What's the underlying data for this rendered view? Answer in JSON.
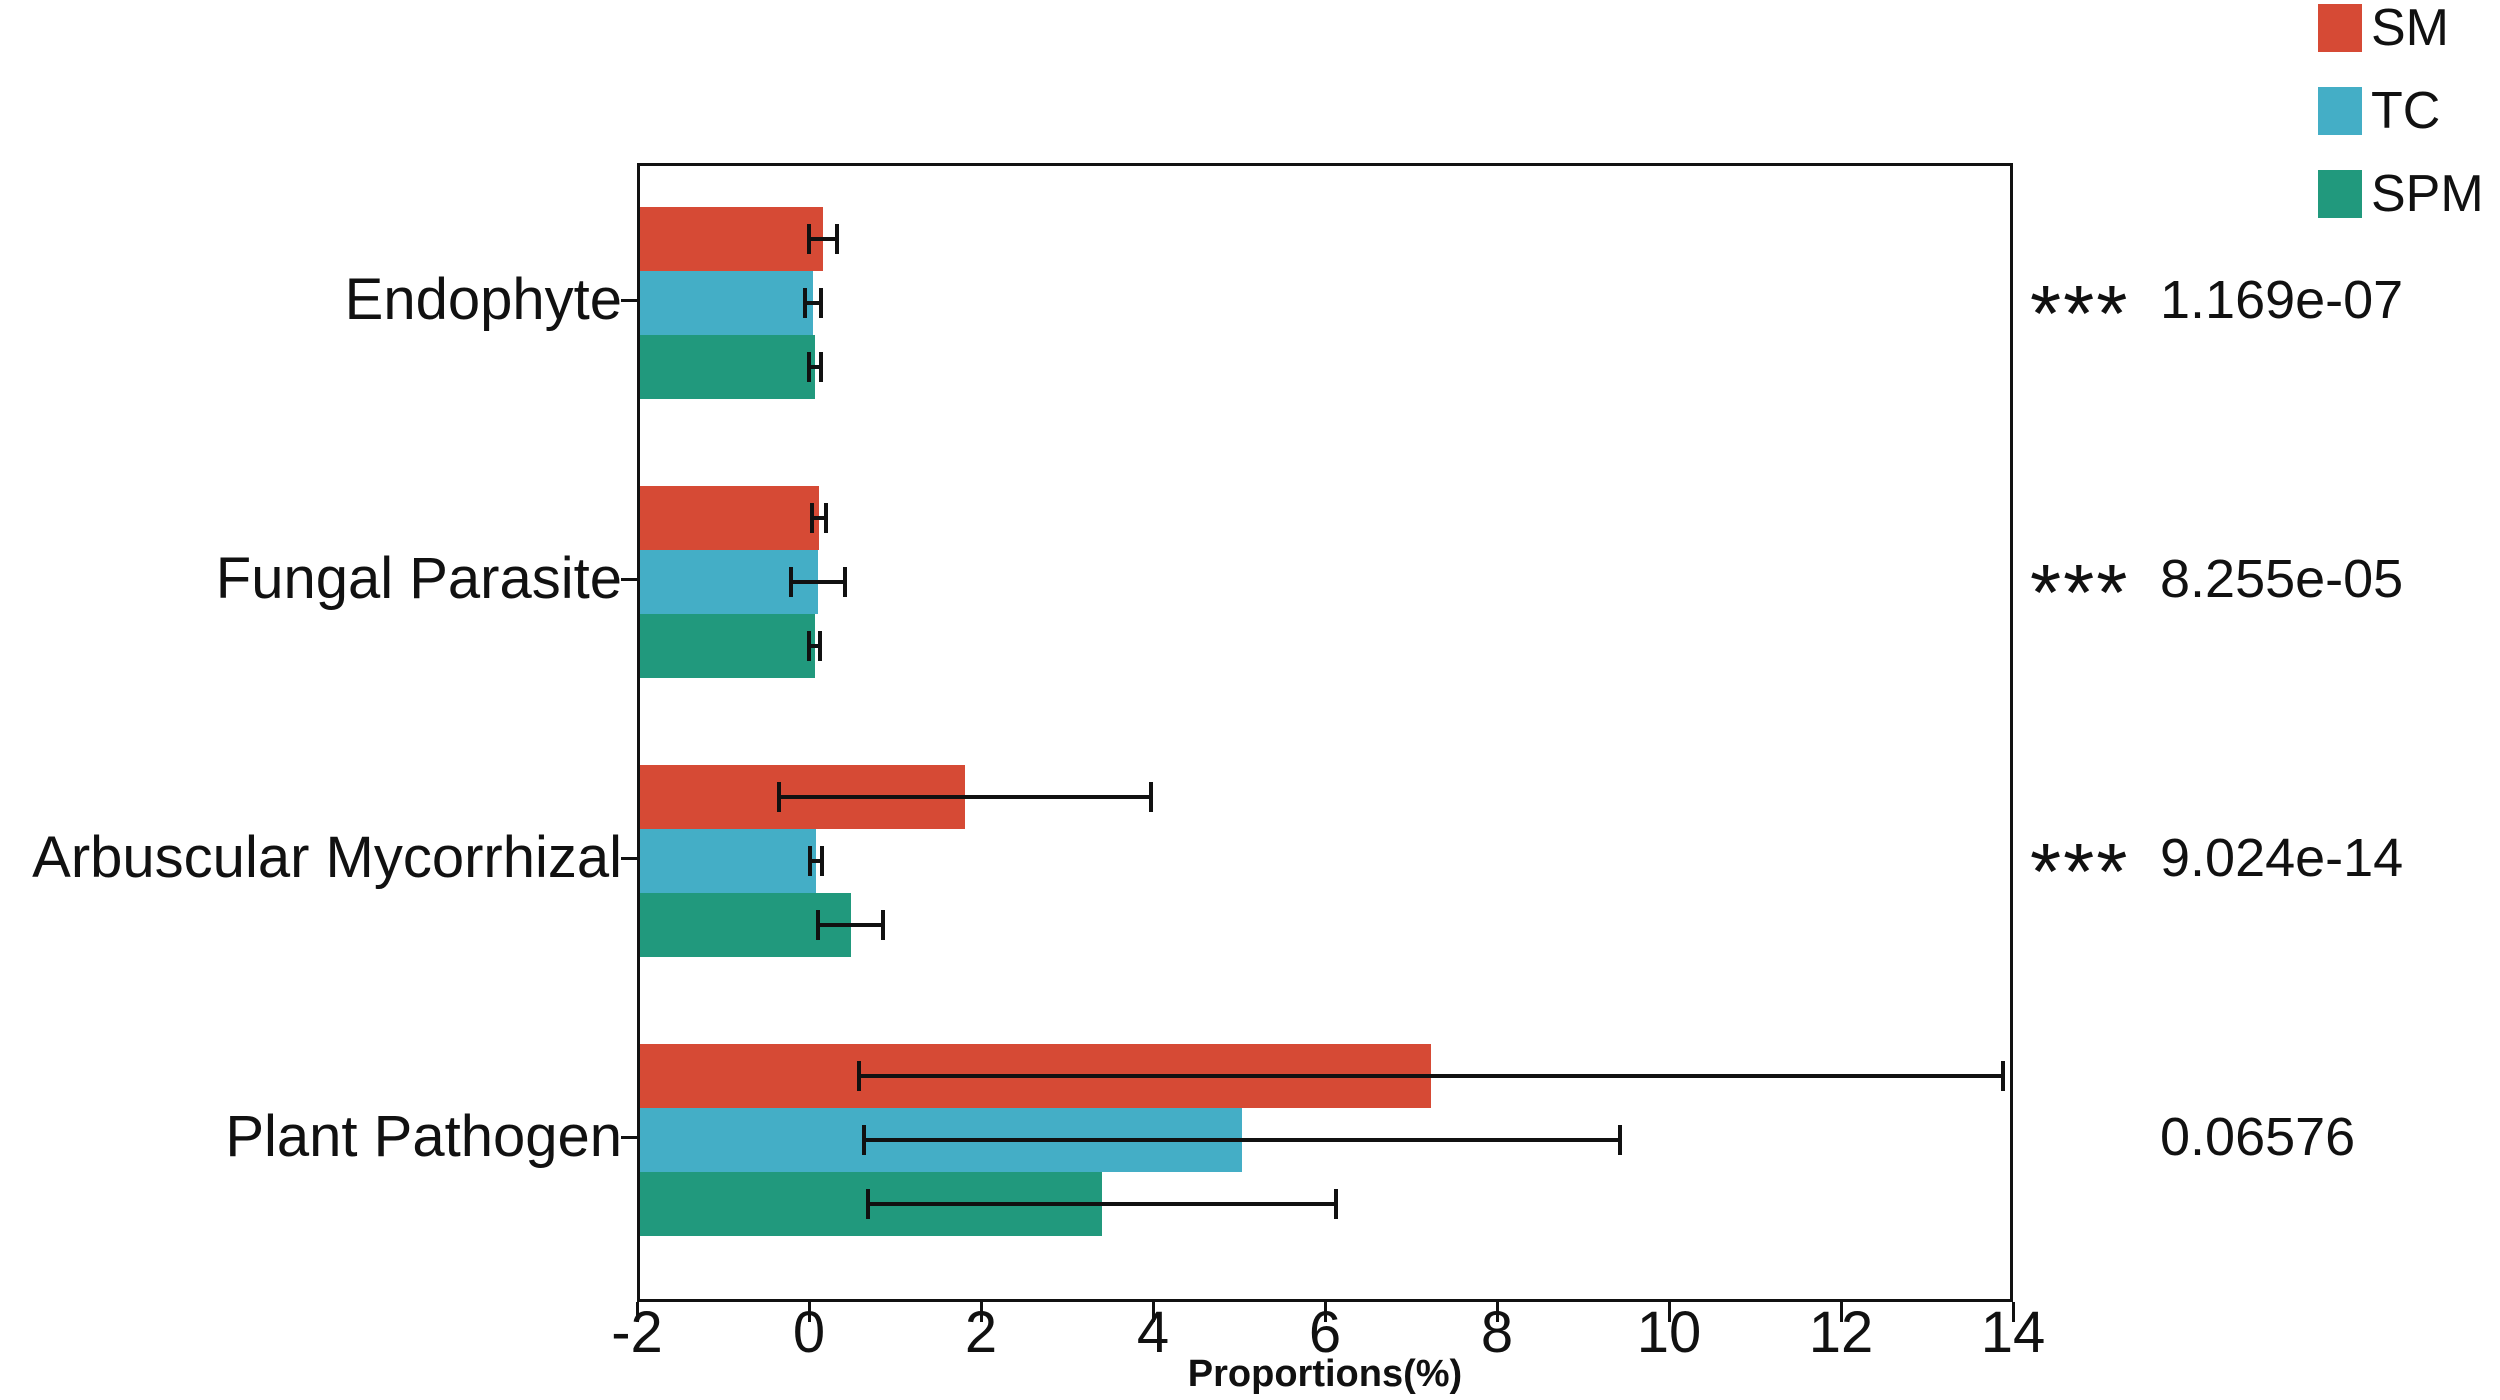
{
  "figure": {
    "background_color": "#ffffff",
    "axis_color": "#111111",
    "title": ""
  },
  "legend": {
    "position": "top-right",
    "items": [
      {
        "label": "SM",
        "color": "#D64A35"
      },
      {
        "label": "TC",
        "color": "#44AEC6"
      },
      {
        "label": "SPM",
        "color": "#21997D"
      }
    ]
  },
  "chart_data": {
    "type": "bar",
    "orientation": "horizontal",
    "title": "",
    "xlabel": "Proportions(%)",
    "ylabel": "",
    "xlim": [
      -2,
      14
    ],
    "xticks": [
      "-2",
      "0",
      "2",
      "4",
      "6",
      "8",
      "10",
      "12",
      "14"
    ],
    "grid": false,
    "legend_position": "top-right",
    "categories": [
      "Endophyte",
      "Fungal Parasite",
      "Arbuscular Mycorrhizal",
      "Plant Pathogen"
    ],
    "series": [
      {
        "name": "SM",
        "color": "#D64A35",
        "values": [
          0.13,
          0.08,
          1.78,
          7.2
        ],
        "errors": [
          0.16,
          0.08,
          2.16,
          6.65
        ]
      },
      {
        "name": "TC",
        "color": "#44AEC6",
        "values": [
          0.01,
          0.07,
          0.05,
          5.0
        ],
        "errors": [
          0.09,
          0.31,
          0.07,
          4.4
        ]
      },
      {
        "name": "SPM",
        "color": "#21997D",
        "values": [
          0.04,
          0.03,
          0.45,
          3.37
        ],
        "errors": [
          0.07,
          0.06,
          0.38,
          2.72
        ]
      }
    ],
    "annotations": [
      {
        "category": "Endophyte",
        "significance": "***",
        "p_value": "1.169e-07"
      },
      {
        "category": "Fungal Parasite",
        "significance": "***",
        "p_value": "8.255e-05"
      },
      {
        "category": "Arbuscular Mycorrhizal",
        "significance": "***",
        "p_value": "9.024e-14"
      },
      {
        "category": "Plant Pathogen",
        "significance": "",
        "p_value": "0.06576"
      }
    ]
  }
}
